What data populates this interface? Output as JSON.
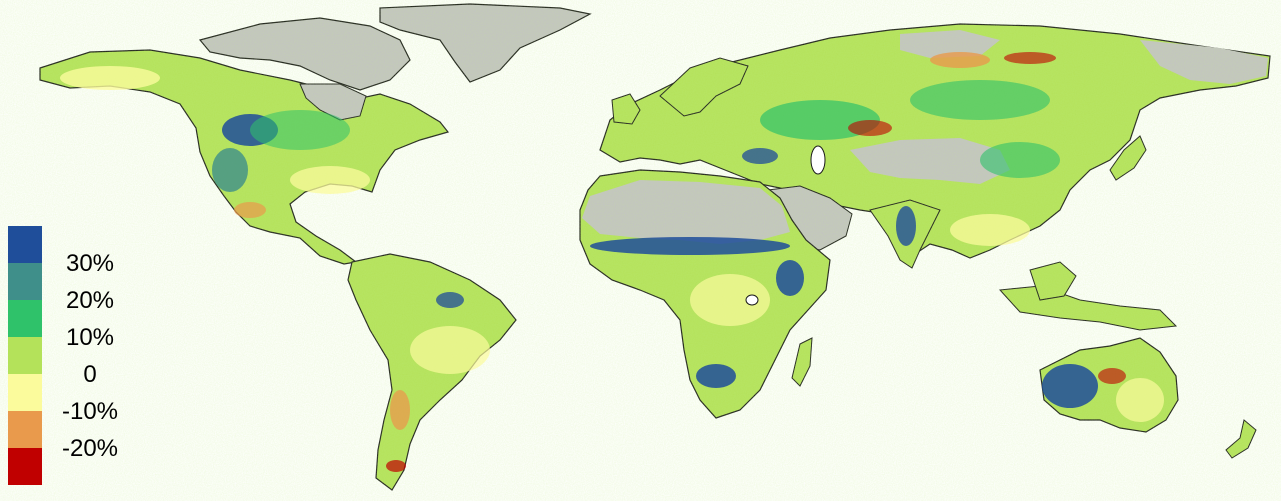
{
  "legend": {
    "labels": [
      "30%",
      "20%",
      "10%",
      "0",
      "-10%",
      "-20%"
    ],
    "swatch_colors": [
      "#1f4e9a",
      "#3f8f8a",
      "#2fc26a",
      "#b4e25a",
      "#fbfb9c",
      "#e99a4c",
      "#c00000"
    ]
  },
  "colors": {
    "no_data": "#c3c3c3",
    "coastline": "#1a1a1a",
    "background": "#ffffff"
  }
}
